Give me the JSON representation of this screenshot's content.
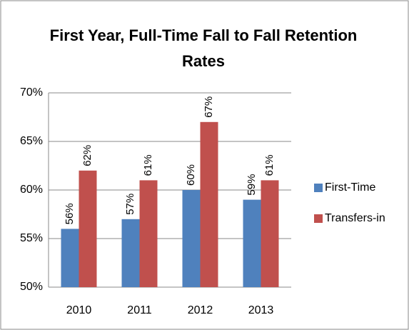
{
  "chart_data": {
    "type": "bar",
    "title": "First Year, Full-Time Fall to Fall Retention Rates",
    "categories": [
      "2010",
      "2011",
      "2012",
      "2013"
    ],
    "series": [
      {
        "name": "First-Time",
        "color": "#4f81bd",
        "values": [
          56,
          57,
          60,
          59
        ],
        "value_labels": [
          "56%",
          "57%",
          "60%",
          "59%"
        ]
      },
      {
        "name": "Transfers-in",
        "color": "#c0504d",
        "values": [
          62,
          61,
          67,
          61
        ],
        "value_labels": [
          "62%",
          "61%",
          "67%",
          "61%"
        ]
      }
    ],
    "ylim": [
      50,
      70
    ],
    "yticks": [
      {
        "value": 50,
        "label": "50%"
      },
      {
        "value": 55,
        "label": "55%"
      },
      {
        "value": 60,
        "label": "60%"
      },
      {
        "value": 65,
        "label": "65%"
      },
      {
        "value": 70,
        "label": "70%"
      }
    ],
    "grid": true,
    "legend": "right"
  }
}
